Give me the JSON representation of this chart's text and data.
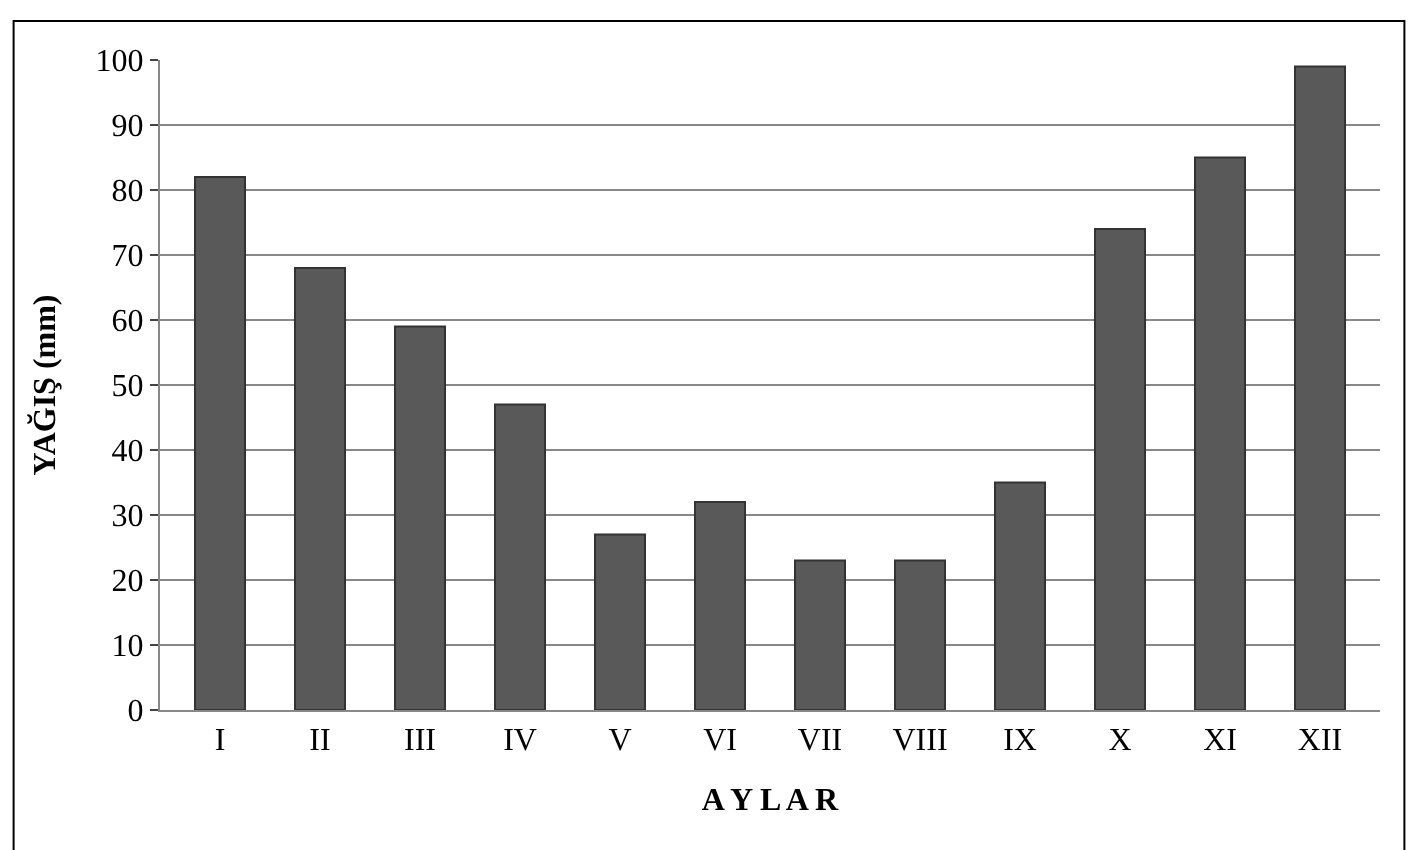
{
  "chart_data": {
    "type": "bar",
    "xlabel": "A Y L A R",
    "ylabel": "YAĞIŞ (mm)",
    "categories": [
      "I",
      "II",
      "III",
      "IV",
      "V",
      "VI",
      "VII",
      "VIII",
      "IX",
      "X",
      "XI",
      "XII"
    ],
    "values": [
      82,
      68,
      59,
      47,
      27,
      32,
      23,
      23,
      35,
      74,
      85,
      99
    ],
    "color": "#595959",
    "ylim": [
      0,
      100
    ],
    "yticks": [
      0,
      10,
      20,
      30,
      40,
      50,
      60,
      70,
      80,
      90,
      100
    ],
    "grid": "y"
  }
}
